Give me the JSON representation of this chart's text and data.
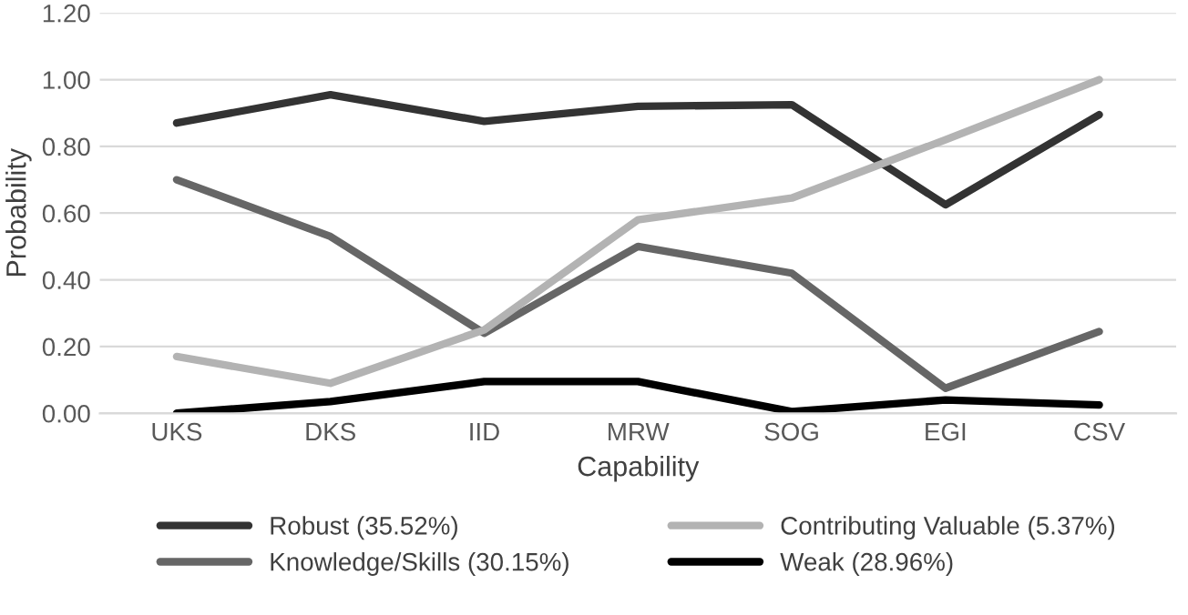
{
  "chart_data": {
    "type": "line",
    "xlabel": "Capability",
    "ylabel": "Probability",
    "categories": [
      "UKS",
      "DKS",
      "IID",
      "MRW",
      "SOG",
      "EGI",
      "CSV"
    ],
    "series": [
      {
        "name": "Robust (35.52%)",
        "color": "#333333",
        "values": [
          0.87,
          0.955,
          0.875,
          0.92,
          0.925,
          0.625,
          0.895
        ]
      },
      {
        "name": "Knowledge/Skills (30.15%)",
        "color": "#666666",
        "values": [
          0.7,
          0.53,
          0.24,
          0.5,
          0.42,
          0.075,
          0.245
        ]
      },
      {
        "name": "Contributing Valuable (5.37%)",
        "color": "#b3b3b3",
        "values": [
          0.17,
          0.09,
          0.25,
          0.58,
          0.645,
          0.82,
          1.0
        ]
      },
      {
        "name": "Weak (28.96%)",
        "color": "#000000",
        "values": [
          0.0,
          0.035,
          0.095,
          0.095,
          0.005,
          0.04,
          0.025
        ]
      }
    ],
    "ylim": [
      0,
      1.2
    ],
    "yticks": [
      {
        "value": 0,
        "label": "0.00"
      },
      {
        "value": 0.2,
        "label": "0.20"
      },
      {
        "value": 0.4,
        "label": "0.40"
      },
      {
        "value": 0.6,
        "label": "0.60"
      },
      {
        "value": 0.8,
        "label": "0.80"
      },
      {
        "value": 1.0,
        "label": "1.00"
      },
      {
        "value": 1.2,
        "label": "1.20"
      }
    ],
    "grid": "y",
    "legend": "bottom",
    "marker": "none",
    "line_style": "solid"
  }
}
